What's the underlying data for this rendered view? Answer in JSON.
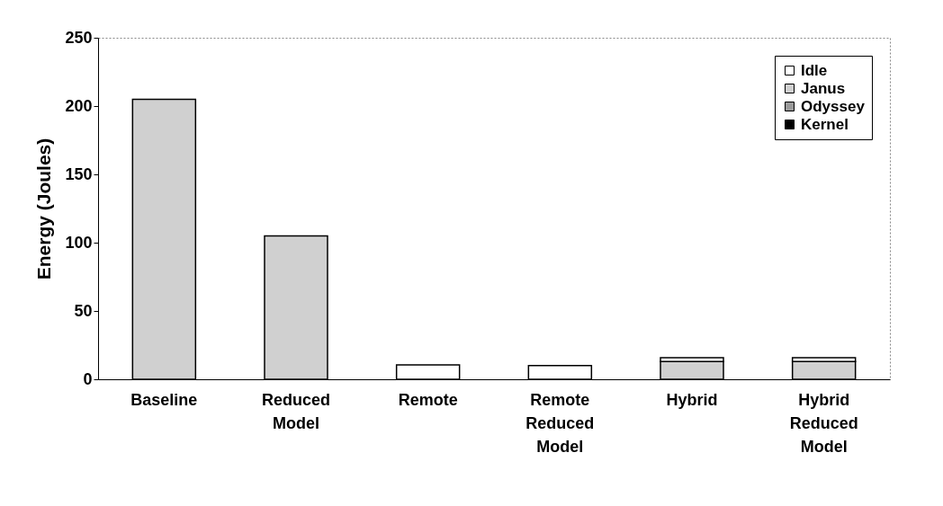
{
  "chart_data": {
    "type": "bar",
    "ylabel": "Energy (Joules)",
    "stacked": true,
    "categories": [
      "Baseline",
      "Reduced Model",
      "Remote",
      "Remote Reduced Model",
      "Hybrid",
      "Hybrid Reduced Model"
    ],
    "series": [
      {
        "name": "Kernel",
        "color": "#000000",
        "values": [
          0,
          0,
          0,
          0,
          0,
          0
        ]
      },
      {
        "name": "Odyssey",
        "color": "#9a9a9a",
        "values": [
          0,
          0,
          0,
          0,
          0,
          0
        ]
      },
      {
        "name": "Janus",
        "color": "#d0d0d0",
        "values": [
          205,
          105,
          0,
          0,
          13,
          13
        ]
      },
      {
        "name": "Idle",
        "color": "#ffffff",
        "values": [
          0,
          0,
          10.5,
          10,
          2.8,
          2.8
        ]
      }
    ],
    "ylim": [
      0,
      250
    ],
    "yticks": [
      0,
      50,
      100,
      150,
      200,
      250
    ],
    "grid": false,
    "legend": "top right"
  }
}
